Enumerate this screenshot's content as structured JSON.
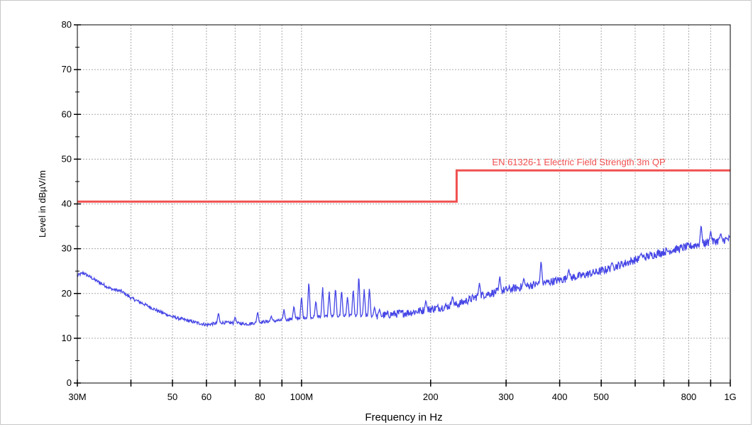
{
  "chart_data": {
    "type": "line",
    "title": "",
    "xlabel": "Frequency in Hz",
    "ylabel": "Level in dBµV/m",
    "x_scale": "log",
    "xlim": [
      30000000,
      1000000000
    ],
    "ylim": [
      0,
      80
    ],
    "grid": true,
    "x_tick_labels": [
      {
        "value": 30000000,
        "label": "30M"
      },
      {
        "value": 50000000,
        "label": "50"
      },
      {
        "value": 60000000,
        "label": "60"
      },
      {
        "value": 80000000,
        "label": "80"
      },
      {
        "value": 100000000,
        "label": "100M"
      },
      {
        "value": 200000000,
        "label": "200"
      },
      {
        "value": 300000000,
        "label": "300"
      },
      {
        "value": 400000000,
        "label": "400"
      },
      {
        "value": 500000000,
        "label": "500"
      },
      {
        "value": 800000000,
        "label": "800"
      },
      {
        "value": 1000000000,
        "label": "1G"
      }
    ],
    "x_minor_ticks": [
      40000000,
      70000000,
      90000000,
      600000000,
      700000000,
      900000000
    ],
    "y_ticks": [
      0,
      10,
      20,
      30,
      40,
      50,
      60,
      70,
      80
    ],
    "series": [
      {
        "name": "EN 61326-1 Electric Field Strength 3m QP",
        "color": "#f05050",
        "style": "step",
        "points": [
          [
            30000000,
            40.5
          ],
          [
            230000000,
            40.5
          ],
          [
            230000000,
            47.5
          ],
          [
            1000000000,
            47.5
          ]
        ]
      },
      {
        "name": "",
        "color": "#4646e6",
        "style": "line",
        "baseline": [
          [
            30000000,
            24
          ],
          [
            31000000,
            24.6
          ],
          [
            33000000,
            23
          ],
          [
            36000000,
            21
          ],
          [
            38000000,
            20.5
          ],
          [
            40000000,
            19
          ],
          [
            43000000,
            17.6
          ],
          [
            46000000,
            16.2
          ],
          [
            50000000,
            14.8
          ],
          [
            55000000,
            13.8
          ],
          [
            60000000,
            13
          ],
          [
            65000000,
            13.5
          ],
          [
            70000000,
            13.4
          ],
          [
            75000000,
            13.2
          ],
          [
            80000000,
            13.6
          ],
          [
            90000000,
            14
          ],
          [
            100000000,
            14.6
          ],
          [
            120000000,
            15
          ],
          [
            150000000,
            15
          ],
          [
            180000000,
            15.8
          ],
          [
            200000000,
            16.5
          ],
          [
            230000000,
            17.5
          ],
          [
            260000000,
            19.5
          ],
          [
            300000000,
            20.8
          ],
          [
            350000000,
            22
          ],
          [
            400000000,
            23
          ],
          [
            450000000,
            24
          ],
          [
            500000000,
            25
          ],
          [
            600000000,
            27.5
          ],
          [
            700000000,
            29.3
          ],
          [
            800000000,
            30.5
          ],
          [
            900000000,
            31.5
          ],
          [
            1000000000,
            32.2
          ]
        ],
        "peaks": [
          [
            64000000,
            15.8
          ],
          [
            70000000,
            14.8
          ],
          [
            79000000,
            16.0
          ],
          [
            85000000,
            15.0
          ],
          [
            91000000,
            16.5
          ],
          [
            96000000,
            17.3
          ],
          [
            100000000,
            19.5
          ],
          [
            104000000,
            23.0
          ],
          [
            108000000,
            18.5
          ],
          [
            112000000,
            21.5
          ],
          [
            116000000,
            20.5
          ],
          [
            120000000,
            21.5
          ],
          [
            124000000,
            21.0
          ],
          [
            128000000,
            19.5
          ],
          [
            132000000,
            21.3
          ],
          [
            136000000,
            24.5
          ],
          [
            140000000,
            21.0
          ],
          [
            144000000,
            21.5
          ],
          [
            148000000,
            17.0
          ],
          [
            152000000,
            16.5
          ],
          [
            195000000,
            18.5
          ],
          [
            225000000,
            19.5
          ],
          [
            260000000,
            22.5
          ],
          [
            290000000,
            24.0
          ],
          [
            330000000,
            23.5
          ],
          [
            362000000,
            27.5
          ],
          [
            420000000,
            25.5
          ],
          [
            530000000,
            27.0
          ],
          [
            620000000,
            29.0
          ],
          [
            855000000,
            35.5
          ],
          [
            900000000,
            34.0
          ],
          [
            950000000,
            33.5
          ]
        ]
      }
    ]
  }
}
